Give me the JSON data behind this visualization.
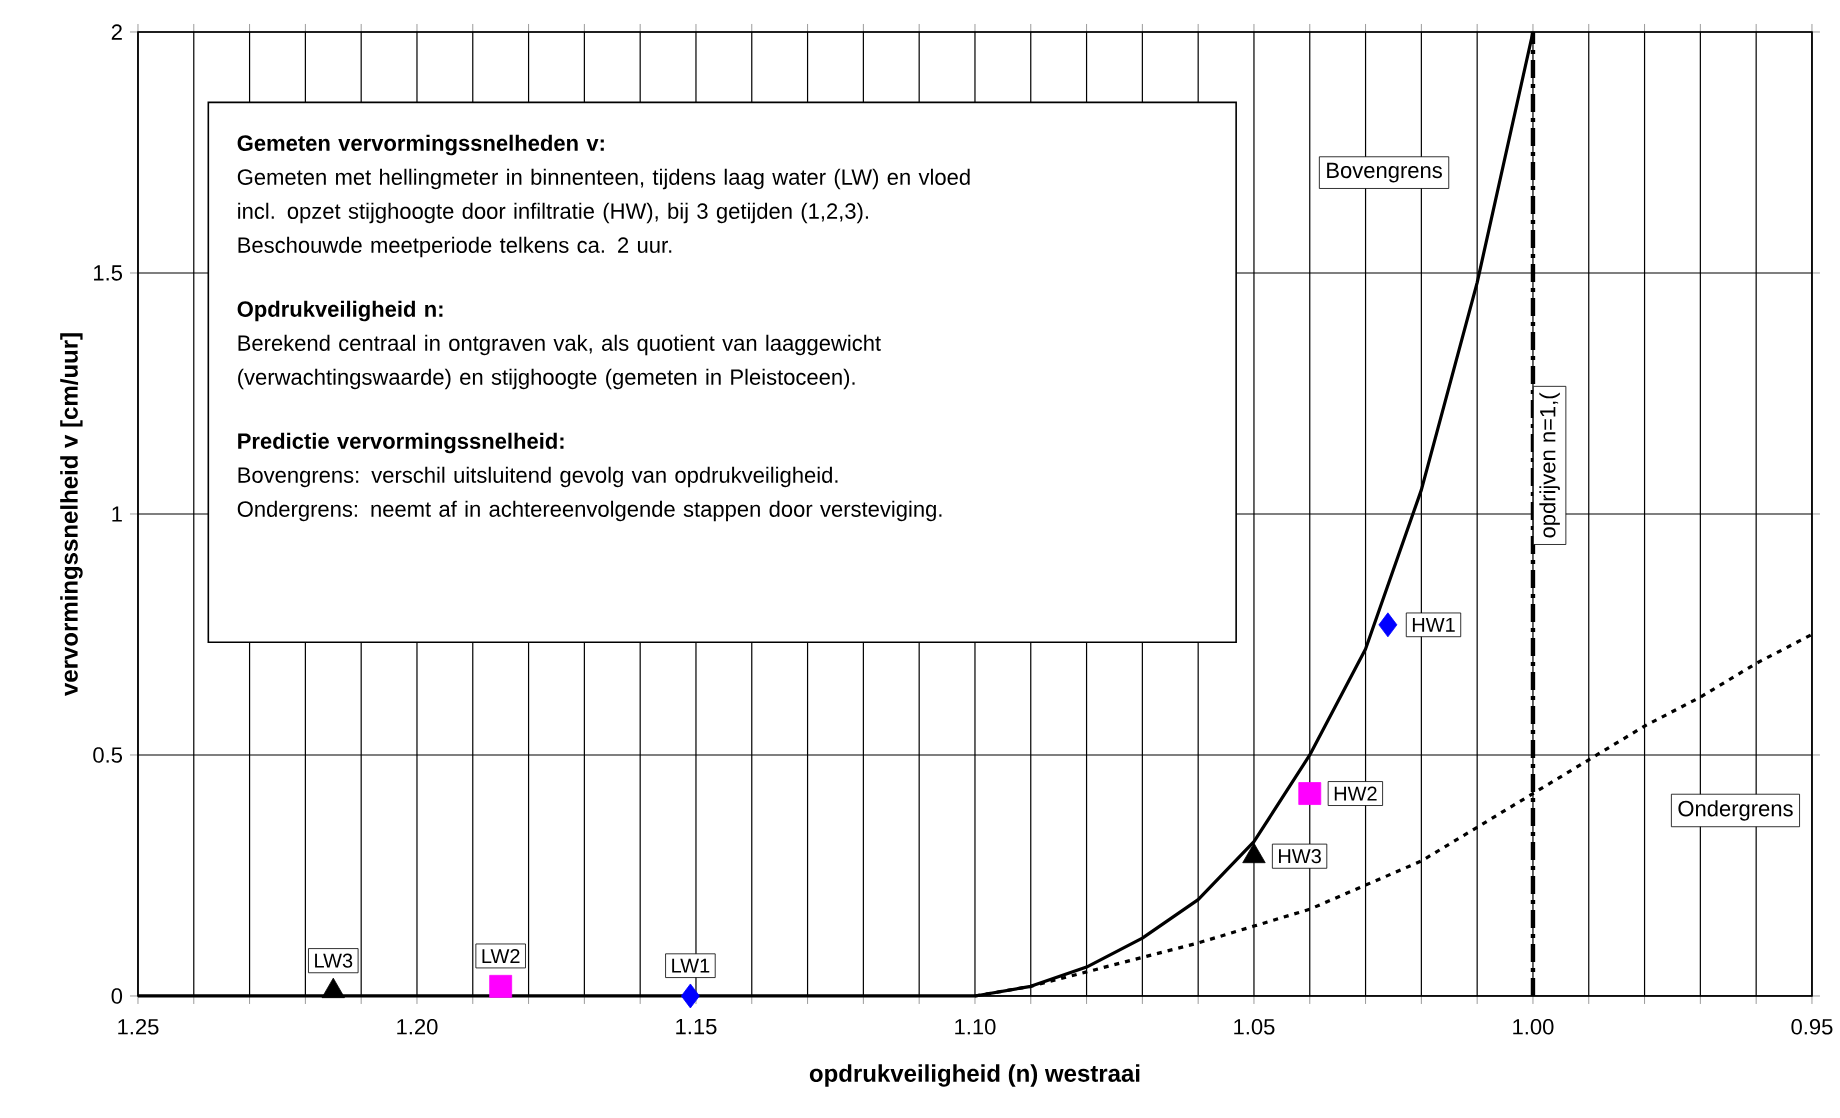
{
  "chart_data": {
    "type": "line",
    "xlabel": "opdrukveiligheid (n) westraai",
    "ylabel": "vervormingssnelheid v [cm/uur]",
    "xlim": [
      1.25,
      0.95
    ],
    "ylim": [
      0,
      2
    ],
    "xticks": [
      {
        "value": 1.25,
        "label": "1.25"
      },
      {
        "value": 1.24,
        "label": null
      },
      {
        "value": 1.23,
        "label": null
      },
      {
        "value": 1.22,
        "label": null
      },
      {
        "value": 1.21,
        "label": null
      },
      {
        "value": 1.2,
        "label": "1.20"
      },
      {
        "value": 1.19,
        "label": null
      },
      {
        "value": 1.18,
        "label": null
      },
      {
        "value": 1.17,
        "label": null
      },
      {
        "value": 1.16,
        "label": null
      },
      {
        "value": 1.15,
        "label": "1.15"
      },
      {
        "value": 1.14,
        "label": null
      },
      {
        "value": 1.13,
        "label": null
      },
      {
        "value": 1.12,
        "label": null
      },
      {
        "value": 1.11,
        "label": null
      },
      {
        "value": 1.1,
        "label": "1.10"
      },
      {
        "value": 1.09,
        "label": null
      },
      {
        "value": 1.08,
        "label": null
      },
      {
        "value": 1.07,
        "label": null
      },
      {
        "value": 1.06,
        "label": null
      },
      {
        "value": 1.05,
        "label": "1.05"
      },
      {
        "value": 1.04,
        "label": null
      },
      {
        "value": 1.03,
        "label": null
      },
      {
        "value": 1.02,
        "label": null
      },
      {
        "value": 1.01,
        "label": null
      },
      {
        "value": 1.0,
        "label": "1.00"
      },
      {
        "value": 0.99,
        "label": null
      },
      {
        "value": 0.98,
        "label": null
      },
      {
        "value": 0.97,
        "label": null
      },
      {
        "value": 0.96,
        "label": null
      },
      {
        "value": 0.95,
        "label": "0.95"
      }
    ],
    "yticks": [
      0,
      0.5,
      1,
      1.5,
      2
    ],
    "grid": true,
    "series": [
      {
        "name": "Bovengrens",
        "color": "#000000",
        "line_style": "solid",
        "marker": "none",
        "x": [
          1.25,
          1.1,
          1.09,
          1.08,
          1.07,
          1.06,
          1.05,
          1.04,
          1.03,
          1.02,
          1.01,
          1.0
        ],
        "values": [
          0,
          0,
          0.02,
          0.06,
          0.12,
          0.2,
          0.32,
          0.5,
          0.72,
          1.05,
          1.48,
          2.0
        ]
      },
      {
        "name": "Ondergrens",
        "color": "#000000",
        "line_style": "dotted",
        "marker": "none",
        "x": [
          1.1,
          1.09,
          1.08,
          1.07,
          1.06,
          1.05,
          1.04,
          1.03,
          1.02,
          1.01,
          1.0,
          0.99,
          0.98,
          0.97,
          0.96,
          0.95
        ],
        "values": [
          0,
          0.02,
          0.05,
          0.08,
          0.11,
          0.145,
          0.18,
          0.23,
          0.28,
          0.35,
          0.42,
          0.49,
          0.56,
          0.62,
          0.69,
          0.75
        ]
      },
      {
        "type": "scatter",
        "color": "#0000ff",
        "marker": "diamond",
        "x": [
          1.151,
          1.026
        ],
        "values": [
          0,
          0.77
        ],
        "value_labels": [
          "LW1",
          "HW1"
        ]
      },
      {
        "type": "scatter",
        "color": "#ff00ff",
        "marker": "square",
        "x": [
          1.185,
          1.04
        ],
        "values": [
          0.02,
          0.42
        ],
        "value_labels": [
          "LW2",
          "HW2"
        ]
      },
      {
        "type": "scatter",
        "color": "#000000",
        "marker": "triangle",
        "x": [
          1.215,
          1.05
        ],
        "values": [
          0.01,
          0.29
        ],
        "value_labels": [
          "LW3",
          "HW3"
        ]
      }
    ],
    "ref_lines": [
      {
        "axis": "x",
        "value": 1.0,
        "label": "opdrijven n=1,(",
        "line_style": "dashed",
        "color": "#000000"
      }
    ],
    "annotations": [
      "**Gemeten vervormingssnelheden v:**",
      "Gemeten met hellingmeter in binnenteen, tijdens laag water (LW) en vloed",
      "incl. opzet stijghoogte door infiltratie (HW), bij 3 getijden (1,2,3).",
      "Beschouwde meetperiode telkens ca. 2 uur.",
      "**Opdrukveiligheid n:**",
      "Berekend centraal in ontgraven vak, als quotient van laaggewicht",
      "(verwachtingswaarde) en stijghoogte (gemeten in Pleistoceen).",
      "**Predictie vervormingssnelheid:**",
      "Bovengrens: verschil uitsluitend gevolg van opdrukveiligheid.",
      "Ondergrens: neemt af in achtereenvolgende stappen door versteviging."
    ]
  }
}
